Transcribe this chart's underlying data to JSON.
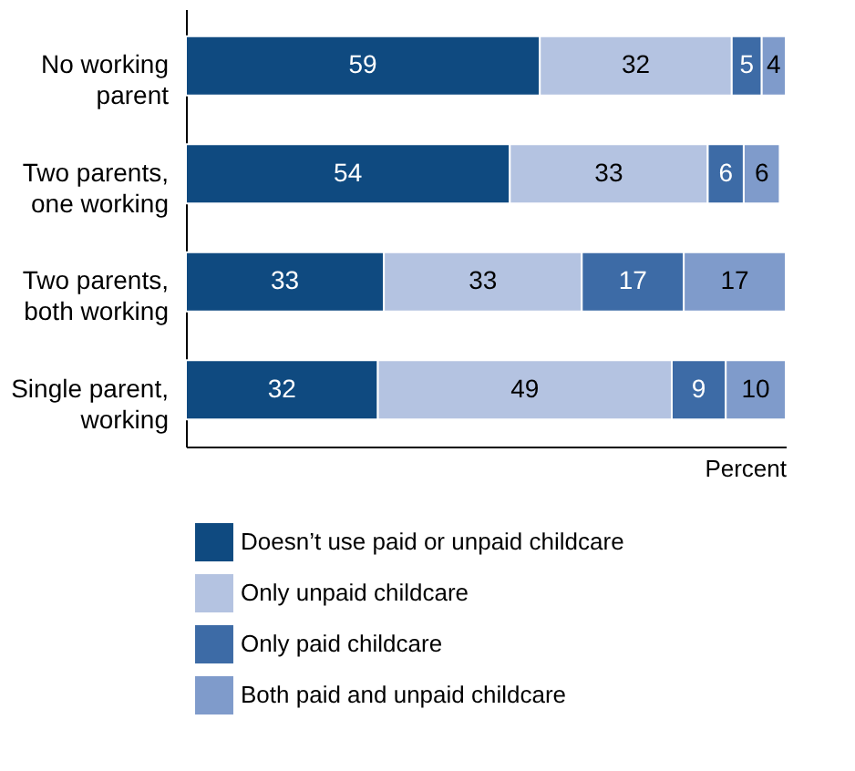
{
  "chart_data": {
    "type": "bar",
    "orientation": "horizontal",
    "stacked": true,
    "xlabel": "Percent",
    "categories": [
      "No working\nparent",
      "Two parents,\none working",
      "Two parents,\nboth working",
      "Single parent,\nworking"
    ],
    "series": [
      {
        "name": "Doesn’t use paid or unpaid childcare",
        "color": "#0f4a80",
        "values": [
          59,
          54,
          33,
          32
        ]
      },
      {
        "name": "Only unpaid childcare",
        "color": "#b4c3e1",
        "values": [
          32,
          33,
          33,
          49
        ]
      },
      {
        "name": "Only paid childcare",
        "color": "#3d6ba6",
        "values": [
          5,
          6,
          17,
          9
        ]
      },
      {
        "name": "Both paid and unpaid childcare",
        "color": "#7f9bcb",
        "values": [
          4,
          6,
          17,
          10
        ]
      }
    ],
    "xlim": [
      0,
      100
    ],
    "data_labels": true,
    "legend": "bottom",
    "tick_labels": "y",
    "grid": false
  }
}
